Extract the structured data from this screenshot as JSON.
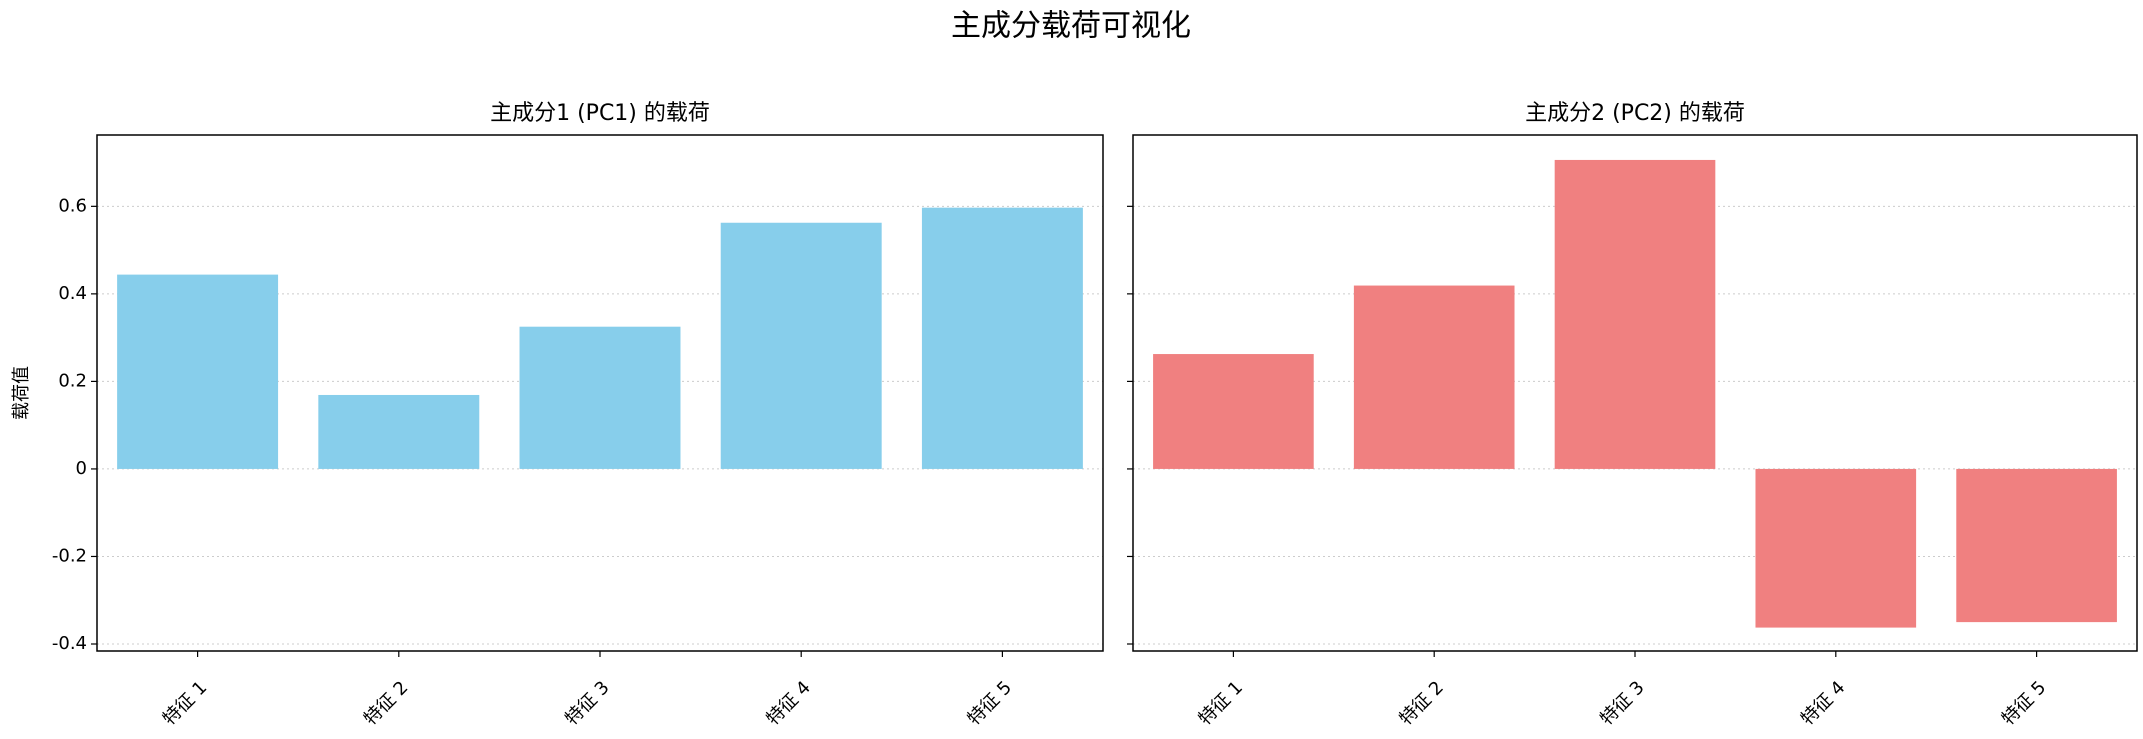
{
  "title": "主成分载荷可视化",
  "chart_data": [
    {
      "type": "bar",
      "title": "主成分1 (PC1) 的载荷",
      "ylabel": "载荷值",
      "categories": [
        "特征 1",
        "特征 2",
        "特征 3",
        "特征 4",
        "特征 5"
      ],
      "values": [
        0.444,
        0.169,
        0.325,
        0.5625,
        0.597
      ],
      "color": "#87ceeb",
      "ylim": [
        -0.416,
        0.763
      ],
      "yticks": [
        -0.4,
        -0.2,
        0.0,
        0.2,
        0.4,
        0.6
      ],
      "grid": true
    },
    {
      "type": "bar",
      "title": "主成分2 (PC2) 的载荷",
      "categories": [
        "特征 1",
        "特征 2",
        "特征 3",
        "特征 4",
        "特征 5"
      ],
      "values": [
        0.2625,
        0.419,
        0.706,
        -0.3625,
        -0.35
      ],
      "color": "#f08080",
      "ylim": [
        -0.416,
        0.763
      ],
      "yticks": [
        -0.4,
        -0.2,
        0.0,
        0.2,
        0.4,
        0.6
      ],
      "grid": true
    }
  ]
}
